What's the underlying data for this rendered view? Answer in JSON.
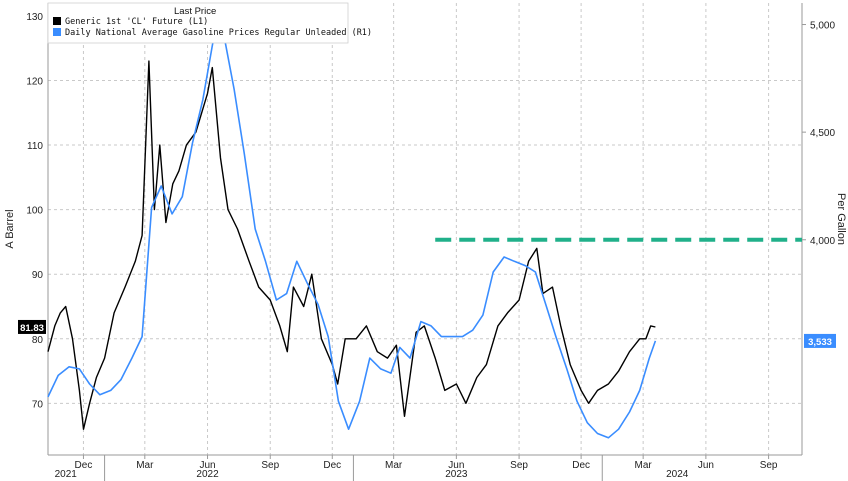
{
  "chart_data": {
    "type": "line",
    "legend": {
      "title": "Last Price",
      "placement": "top-left"
    },
    "left_axis": {
      "label": "A Barrel",
      "ylim": [
        62,
        132
      ],
      "ticks": [
        70,
        80,
        90,
        100,
        110,
        120,
        130
      ]
    },
    "right_axis": {
      "label": "Per Gallon",
      "ylim": [
        3.0,
        5.1
      ],
      "ticks": [
        "4,000",
        "4,500",
        "5,000"
      ],
      "tick_values": [
        4.0,
        4.5,
        5.0
      ]
    },
    "x_axis": {
      "xlim": [
        "2021-10-10",
        "2024-10-20"
      ],
      "month_ticks": [
        {
          "label": "Dec",
          "date": "2021-12-01"
        },
        {
          "label": "Mar",
          "date": "2022-03-01"
        },
        {
          "label": "Jun",
          "date": "2022-06-01"
        },
        {
          "label": "Sep",
          "date": "2022-09-01"
        },
        {
          "label": "Dec",
          "date": "2022-12-01"
        },
        {
          "label": "Mar",
          "date": "2023-03-01"
        },
        {
          "label": "Jun",
          "date": "2023-06-01"
        },
        {
          "label": "Sep",
          "date": "2023-09-01"
        },
        {
          "label": "Dec",
          "date": "2023-12-01"
        },
        {
          "label": "Mar",
          "date": "2024-03-01"
        },
        {
          "label": "Jun",
          "date": "2024-06-01"
        },
        {
          "label": "Sep",
          "date": "2024-09-01"
        }
      ],
      "years": [
        {
          "label": "2021",
          "date": "2021-11-05"
        },
        {
          "label": "2022",
          "date": "2022-06-01"
        },
        {
          "label": "2023",
          "date": "2023-06-01"
        },
        {
          "label": "2024",
          "date": "2024-04-20"
        }
      ],
      "year_separators": [
        "2022-01-01",
        "2023-01-01",
        "2024-01-01"
      ]
    },
    "grid": true,
    "series": [
      {
        "name": "Generic 1st 'CL' Future  (L1)",
        "axis": "left",
        "color": "#000000",
        "last_value_label": "81.83",
        "x": [
          "2021-10-10",
          "2021-10-20",
          "2021-10-28",
          "2021-11-05",
          "2021-11-15",
          "2021-11-25",
          "2021-12-01",
          "2021-12-10",
          "2021-12-20",
          "2022-01-01",
          "2022-01-15",
          "2022-01-31",
          "2022-02-15",
          "2022-02-25",
          "2022-03-07",
          "2022-03-15",
          "2022-03-23",
          "2022-04-01",
          "2022-04-11",
          "2022-04-20",
          "2022-05-01",
          "2022-05-15",
          "2022-06-01",
          "2022-06-08",
          "2022-06-20",
          "2022-07-01",
          "2022-07-15",
          "2022-08-01",
          "2022-08-15",
          "2022-09-01",
          "2022-09-15",
          "2022-09-26",
          "2022-10-05",
          "2022-10-20",
          "2022-11-01",
          "2022-11-15",
          "2022-12-01",
          "2022-12-09",
          "2022-12-20",
          "2023-01-05",
          "2023-01-20",
          "2023-02-05",
          "2023-02-20",
          "2023-03-05",
          "2023-03-17",
          "2023-04-03",
          "2023-04-15",
          "2023-05-01",
          "2023-05-15",
          "2023-06-01",
          "2023-06-15",
          "2023-07-01",
          "2023-07-15",
          "2023-08-01",
          "2023-08-15",
          "2023-09-01",
          "2023-09-15",
          "2023-09-27",
          "2023-10-06",
          "2023-10-20",
          "2023-11-01",
          "2023-11-15",
          "2023-12-01",
          "2023-12-12",
          "2023-12-25",
          "2024-01-10",
          "2024-01-25",
          "2024-02-10",
          "2024-02-25",
          "2024-03-05",
          "2024-03-12",
          "2024-03-19"
        ],
        "values": [
          78,
          82,
          84,
          85,
          80,
          72,
          66,
          70,
          74,
          77,
          84,
          88,
          92,
          96,
          123,
          100,
          110,
          98,
          104,
          106,
          110,
          112,
          118,
          122,
          108,
          100,
          97,
          92,
          88,
          86,
          82,
          78,
          88,
          85,
          90,
          80,
          76,
          73,
          80,
          80,
          82,
          78,
          77,
          79,
          68,
          81,
          82,
          77,
          72,
          73,
          70,
          74,
          76,
          82,
          84,
          86,
          92,
          94,
          87,
          88,
          82,
          76,
          72,
          70,
          72,
          73,
          75,
          78,
          80,
          80,
          82,
          81.83
        ]
      },
      {
        "name": "Daily National Average Gasoline Prices Regular Unleaded  (R1)",
        "axis": "right",
        "color": "#3a8dff",
        "last_value_label": "3,533",
        "x": [
          "2021-10-10",
          "2021-10-25",
          "2021-11-10",
          "2021-11-25",
          "2021-12-10",
          "2021-12-25",
          "2022-01-10",
          "2022-01-25",
          "2022-02-10",
          "2022-02-25",
          "2022-03-11",
          "2022-03-25",
          "2022-04-10",
          "2022-04-25",
          "2022-05-10",
          "2022-05-25",
          "2022-06-14",
          "2022-06-25",
          "2022-07-10",
          "2022-07-25",
          "2022-08-10",
          "2022-08-25",
          "2022-09-10",
          "2022-09-25",
          "2022-10-10",
          "2022-10-25",
          "2022-11-10",
          "2022-11-25",
          "2022-12-10",
          "2022-12-25",
          "2023-01-10",
          "2023-01-25",
          "2023-02-10",
          "2023-02-25",
          "2023-03-10",
          "2023-03-25",
          "2023-04-10",
          "2023-04-25",
          "2023-05-10",
          "2023-05-25",
          "2023-06-10",
          "2023-06-25",
          "2023-07-10",
          "2023-07-25",
          "2023-08-10",
          "2023-08-25",
          "2023-09-10",
          "2023-09-25",
          "2023-10-10",
          "2023-10-25",
          "2023-11-10",
          "2023-11-25",
          "2023-12-10",
          "2023-12-25",
          "2024-01-10",
          "2024-01-25",
          "2024-02-10",
          "2024-02-25",
          "2024-03-10",
          "2024-03-19"
        ],
        "values": [
          3.27,
          3.37,
          3.41,
          3.4,
          3.33,
          3.28,
          3.3,
          3.35,
          3.45,
          3.55,
          4.15,
          4.25,
          4.12,
          4.2,
          4.45,
          4.65,
          5.01,
          4.95,
          4.7,
          4.4,
          4.05,
          3.9,
          3.72,
          3.75,
          3.9,
          3.8,
          3.7,
          3.55,
          3.25,
          3.12,
          3.25,
          3.45,
          3.4,
          3.38,
          3.5,
          3.45,
          3.62,
          3.6,
          3.55,
          3.55,
          3.55,
          3.58,
          3.65,
          3.85,
          3.92,
          3.9,
          3.88,
          3.85,
          3.7,
          3.55,
          3.4,
          3.25,
          3.15,
          3.1,
          3.08,
          3.12,
          3.2,
          3.3,
          3.45,
          3.53
        ]
      }
    ],
    "annotations": [
      {
        "type": "horizontal-dashed",
        "axis": "right",
        "value": 4.0,
        "from": "2023-05-01",
        "to": "2024-10-20",
        "color": "#20b08a"
      }
    ]
  }
}
